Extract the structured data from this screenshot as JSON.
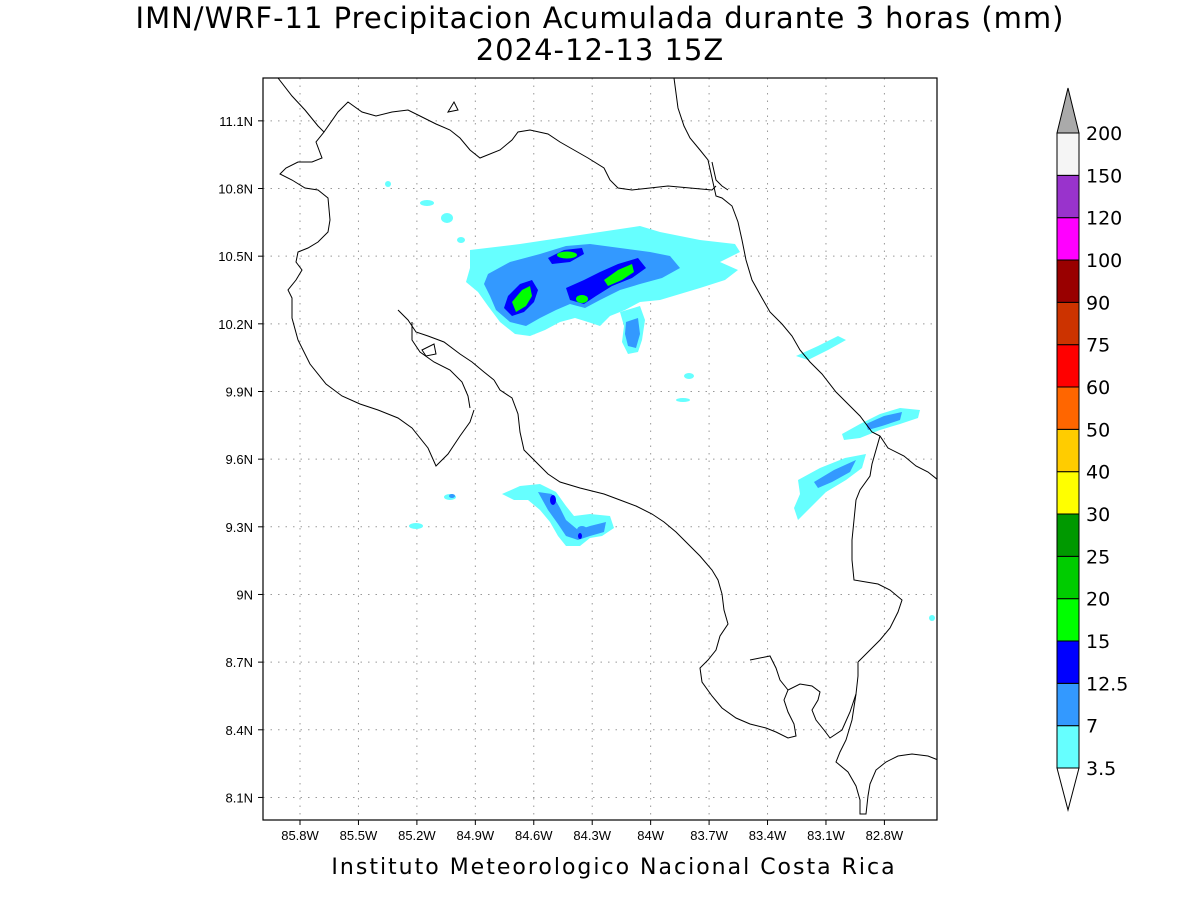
{
  "title": {
    "line1": "IMN/WRF-11 Precipitacion Acumulada durante 3 horas (mm)",
    "line2": "2024-12-13 15Z"
  },
  "footer": "Instituto Meteorologico Nacional Costa Rica",
  "map": {
    "x_ticks": [
      "85.8W",
      "85.5W",
      "85.2W",
      "84.9W",
      "84.6W",
      "84.3W",
      "84W",
      "83.7W",
      "83.4W",
      "83.1W",
      "82.8W"
    ],
    "y_ticks": [
      "11.1N",
      "10.8N",
      "10.5N",
      "10.2N",
      "9.9N",
      "9.6N",
      "9.3N",
      "9N",
      "8.7N",
      "8.4N",
      "8.1N"
    ],
    "lon_range": [
      -85.99,
      -82.53
    ],
    "lat_range": [
      8.0,
      11.29
    ],
    "grid": true
  },
  "colorbar": {
    "levels": [
      "3.5",
      "7",
      "12.5",
      "15",
      "20",
      "25",
      "30",
      "40",
      "50",
      "60",
      "75",
      "90",
      "100",
      "120",
      "150",
      "200"
    ],
    "colors": [
      "#66ffff",
      "#3399ff",
      "#0000ff",
      "#00ff00",
      "#00cc00",
      "#009900",
      "#ffff00",
      "#ffcc00",
      "#ff6600",
      "#ff0000",
      "#cc3300",
      "#990000",
      "#ff00ff",
      "#9933cc",
      "#f5f5f5",
      "#aaaaaa"
    ]
  }
}
